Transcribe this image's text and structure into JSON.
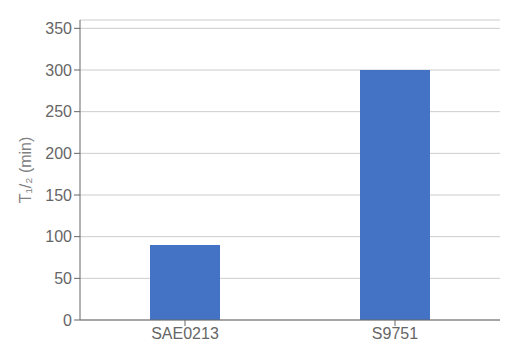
{
  "chart_data": {
    "type": "bar",
    "categories": [
      "SAE0213",
      "S9751"
    ],
    "values": [
      90,
      300
    ],
    "color": "#4472C4",
    "ylabel": "T₁/₂ (min)",
    "ylim": [
      0,
      360
    ],
    "yticks": [
      0,
      50,
      100,
      150,
      200,
      250,
      300,
      350
    ],
    "grid": true
  }
}
